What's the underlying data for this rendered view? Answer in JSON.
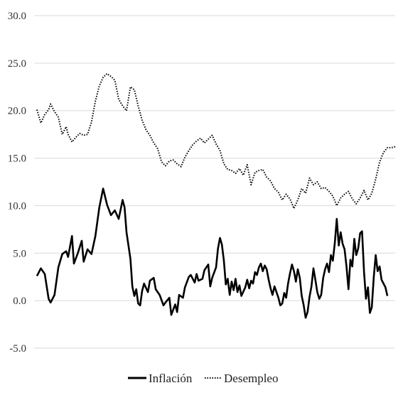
{
  "chart_data": {
    "type": "line",
    "title": "",
    "xlabel": "",
    "ylabel": "",
    "ylim": [
      -5.0,
      30.0
    ],
    "yticks": [
      "30.0",
      "25.0",
      "20.0",
      "15.0",
      "10.0",
      "5.0",
      "0.0",
      "-5.0"
    ],
    "ytick_values": [
      30,
      25,
      20,
      15,
      10,
      5,
      0,
      -5
    ],
    "grid": true,
    "legend_position": "bottom",
    "series": [
      {
        "name": "Inflación",
        "style": "solid",
        "color": "#000000",
        "points": [
          [
            0,
            2.6
          ],
          [
            2,
            3.4
          ],
          [
            4,
            2.8
          ],
          [
            6,
            0.2
          ],
          [
            7,
            -0.2
          ],
          [
            9,
            0.6
          ],
          [
            11,
            3.5
          ],
          [
            13,
            4.9
          ],
          [
            15,
            5.2
          ],
          [
            16,
            4.6
          ],
          [
            18,
            6.8
          ],
          [
            19,
            3.9
          ],
          [
            21,
            5.0
          ],
          [
            23,
            6.3
          ],
          [
            24,
            4.1
          ],
          [
            26,
            5.4
          ],
          [
            28,
            4.9
          ],
          [
            30,
            6.8
          ],
          [
            32,
            9.8
          ],
          [
            34,
            11.8
          ],
          [
            36,
            10.1
          ],
          [
            38,
            9.0
          ],
          [
            40,
            9.5
          ],
          [
            42,
            8.6
          ],
          [
            44,
            10.6
          ],
          [
            45,
            9.8
          ],
          [
            46,
            7.2
          ],
          [
            48,
            4.4
          ],
          [
            49,
            1.5
          ],
          [
            50,
            0.5
          ],
          [
            51,
            1.2
          ],
          [
            52,
            -0.3
          ],
          [
            53,
            -0.5
          ],
          [
            54,
            1.0
          ],
          [
            55,
            1.8
          ],
          [
            57,
            0.9
          ],
          [
            58,
            2.1
          ],
          [
            60,
            2.4
          ],
          [
            61,
            1.2
          ],
          [
            63,
            0.6
          ],
          [
            65,
            -0.5
          ],
          [
            66,
            -0.2
          ],
          [
            68,
            0.3
          ],
          [
            69,
            -1.5
          ],
          [
            71,
            -0.4
          ],
          [
            72,
            -1.2
          ],
          [
            73,
            0.6
          ],
          [
            75,
            0.3
          ],
          [
            76,
            1.4
          ],
          [
            78,
            2.5
          ],
          [
            79,
            2.7
          ],
          [
            81,
            1.9
          ],
          [
            82,
            2.8
          ],
          [
            83,
            2.1
          ],
          [
            85,
            2.3
          ],
          [
            86,
            3.2
          ],
          [
            88,
            3.8
          ],
          [
            89,
            1.5
          ],
          [
            90,
            2.4
          ],
          [
            92,
            3.5
          ],
          [
            93,
            5.5
          ],
          [
            94,
            6.6
          ],
          [
            95,
            5.9
          ],
          [
            96,
            4.2
          ],
          [
            97,
            1.7
          ],
          [
            98,
            2.3
          ],
          [
            99,
            0.6
          ],
          [
            100,
            2.0
          ],
          [
            101,
            1.1
          ],
          [
            102,
            2.3
          ],
          [
            103,
            0.9
          ],
          [
            104,
            1.6
          ],
          [
            105,
            0.5
          ],
          [
            107,
            1.4
          ],
          [
            108,
            2.2
          ],
          [
            109,
            1.3
          ],
          [
            110,
            2.1
          ],
          [
            111,
            1.8
          ],
          [
            112,
            3.0
          ],
          [
            113,
            2.7
          ],
          [
            114,
            3.5
          ],
          [
            115,
            3.9
          ],
          [
            116,
            3.1
          ],
          [
            117,
            3.7
          ],
          [
            118,
            3.3
          ],
          [
            119,
            2.2
          ],
          [
            120,
            1.3
          ],
          [
            121,
            0.6
          ],
          [
            122,
            1.5
          ],
          [
            124,
            0.3
          ],
          [
            125,
            -0.5
          ],
          [
            126,
            -0.3
          ],
          [
            127,
            0.8
          ],
          [
            128,
            0.3
          ],
          [
            129,
            1.8
          ],
          [
            130,
            2.9
          ],
          [
            131,
            3.8
          ],
          [
            132,
            3.1
          ],
          [
            133,
            2.0
          ],
          [
            134,
            3.3
          ],
          [
            135,
            2.4
          ],
          [
            136,
            0.5
          ],
          [
            137,
            -0.5
          ],
          [
            138,
            -1.8
          ],
          [
            139,
            -1.2
          ],
          [
            140,
            0.4
          ],
          [
            141,
            1.5
          ],
          [
            142,
            3.4
          ],
          [
            143,
            2.2
          ],
          [
            144,
            0.9
          ],
          [
            145,
            0.2
          ],
          [
            146,
            0.6
          ],
          [
            147,
            2.4
          ],
          [
            148,
            3.3
          ],
          [
            149,
            3.9
          ],
          [
            150,
            3.0
          ],
          [
            151,
            4.8
          ],
          [
            152,
            4.2
          ],
          [
            153,
            6.1
          ],
          [
            154,
            8.6
          ],
          [
            155,
            5.8
          ],
          [
            156,
            7.2
          ],
          [
            157,
            6.0
          ],
          [
            158,
            5.4
          ],
          [
            159,
            3.6
          ],
          [
            160,
            1.2
          ],
          [
            161,
            4.3
          ],
          [
            162,
            3.6
          ],
          [
            163,
            6.5
          ],
          [
            164,
            4.8
          ],
          [
            165,
            5.5
          ],
          [
            166,
            7.1
          ],
          [
            167,
            7.3
          ],
          [
            168,
            3.0
          ],
          [
            169,
            0.2
          ],
          [
            170,
            1.4
          ],
          [
            171,
            -1.3
          ],
          [
            172,
            -0.7
          ],
          [
            173,
            2.5
          ],
          [
            174,
            4.8
          ],
          [
            175,
            3.1
          ],
          [
            176,
            3.6
          ],
          [
            177,
            2.2
          ],
          [
            178,
            1.8
          ],
          [
            179,
            1.4
          ],
          [
            180,
            0.5
          ]
        ]
      },
      {
        "name": "Desempleo",
        "style": "dotted",
        "color": "#000000",
        "points": [
          [
            0,
            20.1
          ],
          [
            2,
            18.7
          ],
          [
            4,
            19.6
          ],
          [
            6,
            20.1
          ],
          [
            7,
            20.7
          ],
          [
            9,
            19.9
          ],
          [
            11,
            19.3
          ],
          [
            13,
            17.5
          ],
          [
            15,
            18.3
          ],
          [
            16,
            17.5
          ],
          [
            18,
            16.7
          ],
          [
            20,
            17.2
          ],
          [
            22,
            17.6
          ],
          [
            24,
            17.4
          ],
          [
            26,
            17.5
          ],
          [
            28,
            18.8
          ],
          [
            30,
            21.0
          ],
          [
            32,
            22.6
          ],
          [
            34,
            23.5
          ],
          [
            36,
            23.9
          ],
          [
            38,
            23.6
          ],
          [
            40,
            23.2
          ],
          [
            42,
            21.2
          ],
          [
            44,
            20.5
          ],
          [
            46,
            20.0
          ],
          [
            48,
            22.5
          ],
          [
            50,
            22.2
          ],
          [
            52,
            20.5
          ],
          [
            54,
            19.0
          ],
          [
            56,
            18.0
          ],
          [
            58,
            17.4
          ],
          [
            60,
            16.6
          ],
          [
            62,
            16.0
          ],
          [
            64,
            14.6
          ],
          [
            66,
            14.2
          ],
          [
            68,
            14.7
          ],
          [
            70,
            14.8
          ],
          [
            72,
            14.4
          ],
          [
            74,
            14.1
          ],
          [
            76,
            15.1
          ],
          [
            78,
            15.8
          ],
          [
            80,
            16.4
          ],
          [
            82,
            16.8
          ],
          [
            84,
            17.1
          ],
          [
            86,
            16.6
          ],
          [
            88,
            17.0
          ],
          [
            90,
            17.4
          ],
          [
            92,
            16.5
          ],
          [
            94,
            15.8
          ],
          [
            96,
            14.4
          ],
          [
            98,
            13.8
          ],
          [
            100,
            13.7
          ],
          [
            102,
            13.4
          ],
          [
            104,
            13.9
          ],
          [
            106,
            13.2
          ],
          [
            108,
            14.3
          ],
          [
            110,
            12.2
          ],
          [
            112,
            13.5
          ],
          [
            114,
            13.7
          ],
          [
            116,
            13.8
          ],
          [
            118,
            13.0
          ],
          [
            120,
            12.6
          ],
          [
            122,
            11.8
          ],
          [
            124,
            11.4
          ],
          [
            126,
            10.6
          ],
          [
            128,
            11.2
          ],
          [
            130,
            10.7
          ],
          [
            132,
            9.7
          ],
          [
            134,
            10.6
          ],
          [
            136,
            11.8
          ],
          [
            138,
            11.3
          ],
          [
            140,
            12.9
          ],
          [
            142,
            12.2
          ],
          [
            144,
            12.5
          ],
          [
            146,
            11.8
          ],
          [
            148,
            11.9
          ],
          [
            150,
            11.5
          ],
          [
            152,
            11.0
          ],
          [
            154,
            10.0
          ],
          [
            156,
            10.8
          ],
          [
            158,
            11.2
          ],
          [
            160,
            11.5
          ],
          [
            162,
            10.7
          ],
          [
            164,
            10.2
          ],
          [
            166,
            10.8
          ],
          [
            168,
            11.6
          ],
          [
            170,
            10.6
          ],
          [
            172,
            11.3
          ],
          [
            174,
            12.8
          ],
          [
            176,
            14.6
          ],
          [
            178,
            15.6
          ],
          [
            180,
            16.1
          ],
          [
            182,
            16.1
          ],
          [
            184,
            16.2
          ]
        ]
      }
    ],
    "legend": [
      "Inflación",
      "Desempleo"
    ]
  }
}
